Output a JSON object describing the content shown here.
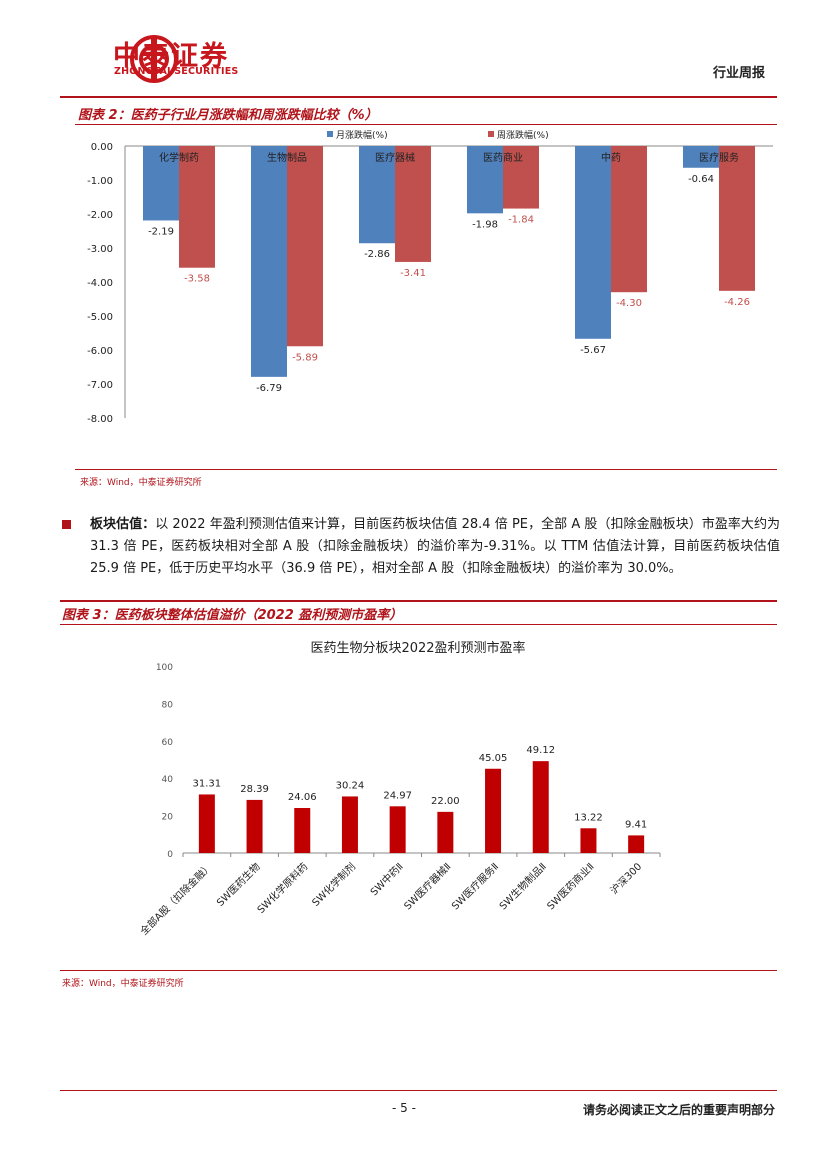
{
  "header": {
    "brand_cn": "中泰证券",
    "brand_en": "ZHONGTAI SECURITIES",
    "report_type": "行业周报",
    "logo_icon": "zhongtai-logo-icon",
    "accent_color": "#b0141a"
  },
  "figure2": {
    "title": "图表 2：医药子行业月涨跌幅和周涨跌幅比较（%）",
    "source": "来源：Wind，中泰证券研究所"
  },
  "figure3": {
    "title": "图表 3：医药板块整体估值溢价（2022 盈利预测市盈率）",
    "source": "来源：Wind，中泰证券研究所"
  },
  "paragraph": {
    "lead": "板块估值：",
    "text": "以 2022 年盈利预测估值来计算，目前医药板块估值 28.4 倍 PE，全部 A 股（扣除金融板块）市盈率大约为 31.3 倍 PE，医药板块相对全部 A 股（扣除金融板块）的溢价率为-9.31%。以 TTM 估值法计算，目前医药板块估值 25.9 倍 PE，低于历史平均水平（36.9 倍 PE），相对全部 A 股（扣除金融板块）的溢价率为 30.0%。"
  },
  "footer": {
    "page": "- 5 -",
    "disclaimer": "请务必阅读正文之后的重要声明部分"
  },
  "chart_data": [
    {
      "type": "bar",
      "categories": [
        "化学制药",
        "生物制品",
        "医疗器械",
        "医药商业",
        "中药",
        "医疗服务"
      ],
      "series": [
        {
          "name": "月涨跌幅(%)",
          "color": "#4f81bd",
          "values": [
            -2.19,
            -6.79,
            -2.86,
            -1.98,
            -5.67,
            -0.64
          ]
        },
        {
          "name": "周涨跌幅(%)",
          "color": "#c0504d",
          "values": [
            -3.58,
            -5.89,
            -3.41,
            -1.84,
            -4.3,
            -4.26
          ]
        }
      ],
      "ylim": [
        -8,
        0
      ],
      "yticks": [
        "0.00",
        "-1.00",
        "-2.00",
        "-3.00",
        "-4.00",
        "-5.00",
        "-6.00",
        "-7.00",
        "-8.00"
      ],
      "data_labels": [
        [
          "-2.19",
          "-6.79",
          "-2.86",
          "-1.98",
          "-5.67",
          "-0.64"
        ],
        [
          "-3.58",
          "-5.89",
          "-3.41",
          "-1.84",
          "-4.30",
          "-4.26"
        ]
      ],
      "legend": "top"
    },
    {
      "type": "bar",
      "title": "医药生物分板块2022盈利预测市盈率",
      "categories": [
        "全部A股（扣除金融）",
        "SW医药生物",
        "SW化学原料药",
        "SW化学制剂",
        "SW中药Ⅱ",
        "SW医疗器械Ⅱ",
        "SW医疗服务Ⅱ",
        "SW生物制品Ⅱ",
        "SW医药商业Ⅱ",
        "沪深300"
      ],
      "values": [
        31.31,
        28.39,
        24.06,
        30.24,
        24.97,
        22.0,
        45.05,
        49.12,
        13.22,
        9.41
      ],
      "data_labels": [
        "31.31",
        "28.39",
        "24.06",
        "30.24",
        "24.97",
        "22.00",
        "45.05",
        "49.12",
        "13.22",
        "9.41"
      ],
      "color": "#c00000",
      "ylim": [
        0,
        100
      ],
      "yticks": [
        "0",
        "20",
        "40",
        "60",
        "80",
        "100"
      ]
    }
  ]
}
